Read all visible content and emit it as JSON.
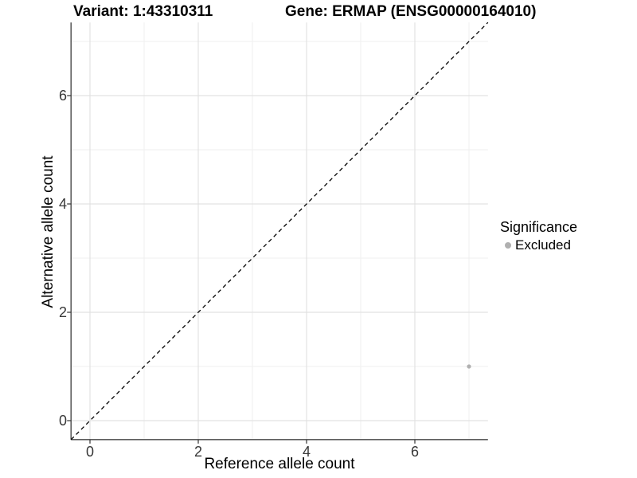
{
  "figure": {
    "title_left": "Variant: 1:43310311",
    "title_right": "Gene: ERMAP (ENSG00000164010)"
  },
  "chart_data": {
    "type": "scatter",
    "title": "Variant: 1:43310311   Gene: ERMAP (ENSG00000164010)",
    "xlabel": "Reference allele count",
    "ylabel": "Alternative allele count",
    "xlim": [
      -0.35,
      7.35
    ],
    "ylim": [
      -0.35,
      7.35
    ],
    "x_major_ticks": [
      0,
      2,
      4,
      6
    ],
    "y_major_ticks": [
      0,
      2,
      4,
      6
    ],
    "x_minor_gridlines": [
      1,
      3,
      5,
      7
    ],
    "y_minor_gridlines": [
      1,
      3,
      5,
      7
    ],
    "grid": true,
    "reference_line": {
      "type": "identity y = x",
      "style": "dashed",
      "color": "#000000"
    },
    "series": [
      {
        "name": "Excluded",
        "color": "#b0b0b0",
        "points": [
          {
            "x": 7,
            "y": 1
          }
        ]
      }
    ],
    "legend": {
      "title": "Significance",
      "position": "right",
      "items": [
        {
          "label": "Excluded",
          "color": "#b0b0b0"
        }
      ]
    },
    "colors": {
      "background": "#ffffff",
      "axis_line": "#454545",
      "tick_mark": "#333333",
      "tick_label": "#383838",
      "major_grid": "#e2e2e2",
      "minor_grid": "#efefef"
    }
  }
}
